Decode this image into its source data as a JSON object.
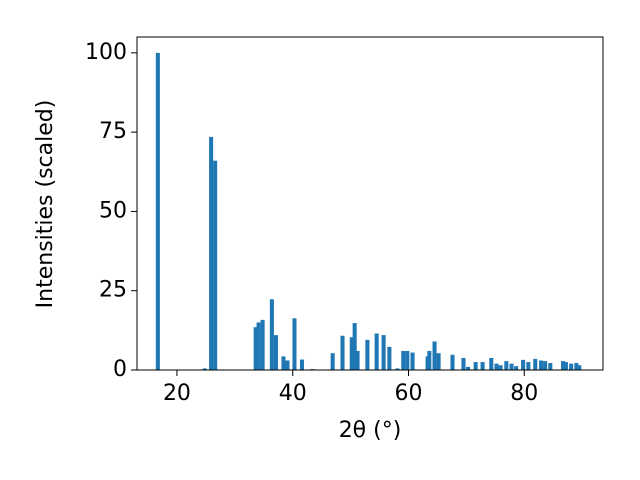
{
  "chart_data": {
    "type": "bar",
    "xlabel": "2θ (°)",
    "ylabel": "Intensities (scaled)",
    "x": [
      16.7,
      24.8,
      25.9,
      26.6,
      33.6,
      34.1,
      34.8,
      36.4,
      37.1,
      38.4,
      39.1,
      40.3,
      41.6,
      43.4,
      46.9,
      48.6,
      50.2,
      50.7,
      51.2,
      52.9,
      54.5,
      55.7,
      56.7,
      58.1,
      59.1,
      59.8,
      60.7,
      63.3,
      63.6,
      64.5,
      65.2,
      67.6,
      69.5,
      70.3,
      71.6,
      72.8,
      74.3,
      75.2,
      75.9,
      76.9,
      77.8,
      78.6,
      79.8,
      80.7,
      81.9,
      82.9,
      83.6,
      84.5,
      86.7,
      87.2,
      88.1,
      89.0,
      89.5
    ],
    "values": [
      100,
      0.5,
      73.5,
      66,
      13.5,
      15,
      15.8,
      22.3,
      11,
      4.3,
      3,
      16.3,
      3.3,
      0.3,
      5.3,
      10.8,
      10.3,
      14.8,
      6,
      9.5,
      11.5,
      11,
      7.3,
      0.5,
      6,
      6,
      5.5,
      4.3,
      6,
      9,
      5.3,
      4.8,
      3.8,
      1,
      2.5,
      2.5,
      3.8,
      2,
      1.5,
      2.8,
      2,
      1.2,
      3.2,
      2.5,
      3.5,
      3,
      2.8,
      2.2,
      2.8,
      2.5,
      2,
      2.2,
      1.5
    ],
    "color": "#1f77b4",
    "xlim": [
      13.1,
      93.6
    ],
    "ylim": [
      0,
      105
    ],
    "xticks": [
      20,
      40,
      60,
      80
    ],
    "yticks": [
      0,
      25,
      50,
      75,
      100
    ]
  }
}
